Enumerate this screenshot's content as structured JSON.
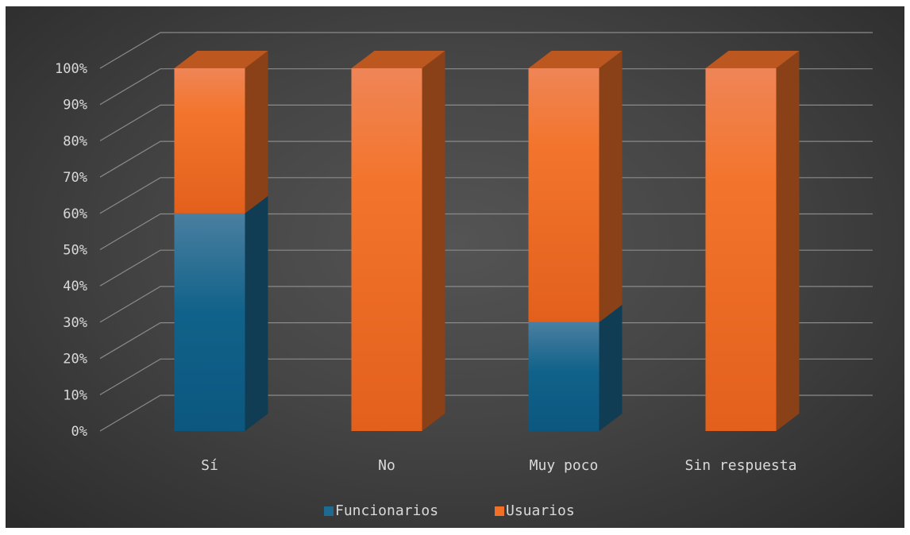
{
  "chart_data": {
    "type": "bar",
    "stacked": "percent",
    "style": "3d-columns",
    "categories": [
      "Sí",
      "No",
      "Muy poco",
      "Sin respuesta"
    ],
    "series": [
      {
        "name": "Funcionarios",
        "values": [
          60,
          0,
          30,
          0
        ],
        "color": "#1e6a91"
      },
      {
        "name": "Usuarios",
        "values": [
          40,
          100,
          70,
          100
        ],
        "color": "#f07028"
      }
    ],
    "y_ticks": [
      "0%",
      "10%",
      "20%",
      "30%",
      "40%",
      "50%",
      "60%",
      "70%",
      "80%",
      "90%",
      "100%"
    ],
    "ylim": [
      0,
      100
    ],
    "grid": true,
    "legend_position": "bottom",
    "background": "#3f3f3f"
  }
}
